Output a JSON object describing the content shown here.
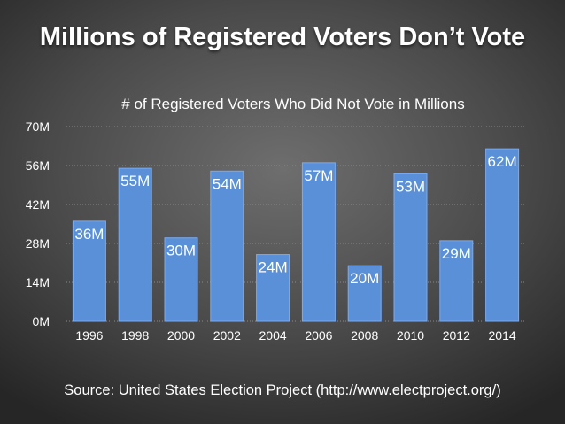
{
  "slide": {
    "title": "Millions of Registered Voters Don’t Vote",
    "source": "Source: United States Election Project (http://www.electproject.org/)"
  },
  "colors": {
    "bar": "#5a90d8",
    "bar_edge": "#7aaaf0",
    "text": "#ffffff",
    "gridline": "#8a8a8a"
  },
  "chart_data": {
    "type": "bar",
    "title": "# of Registered Voters Who Did Not Vote in Millions",
    "xlabel": "",
    "ylabel": "",
    "categories": [
      "1996",
      "1998",
      "2000",
      "2002",
      "2004",
      "2006",
      "2008",
      "2010",
      "2012",
      "2014"
    ],
    "values": [
      36,
      55,
      30,
      54,
      24,
      57,
      20,
      53,
      29,
      62
    ],
    "value_labels": [
      "36M",
      "55M",
      "30M",
      "54M",
      "24M",
      "57M",
      "20M",
      "53M",
      "29M",
      "62M"
    ],
    "ylim": [
      0,
      70
    ],
    "yticks": [
      0,
      14,
      28,
      42,
      56,
      70
    ],
    "ytick_labels": [
      "0M",
      "14M",
      "28M",
      "42M",
      "56M",
      "70M"
    ],
    "grid": true,
    "legend": "none"
  }
}
